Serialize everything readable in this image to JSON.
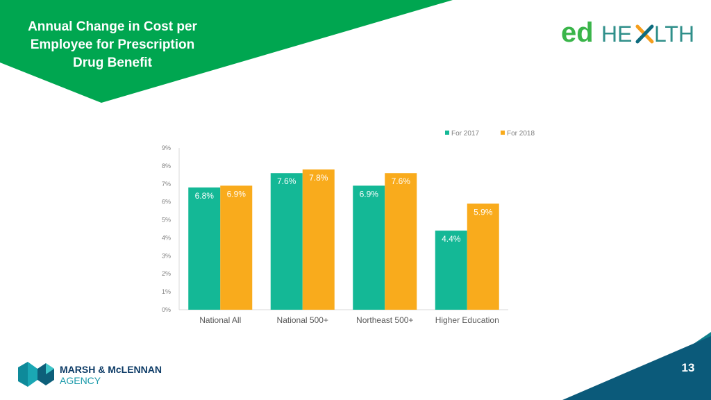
{
  "slide": {
    "title": "Annual Change in Cost per Employee for Prescription Drug Benefit",
    "page_number": "13"
  },
  "logos": {
    "edhealth": {
      "ed": "ed",
      "he": "HE",
      "lth": "LTH"
    },
    "agency": {
      "line1": "MARSH & McLENNAN",
      "line2": "AGENCY"
    }
  },
  "colors": {
    "banner_green": "#00a650",
    "series_2017": "#14b896",
    "series_2018": "#f9ab1c",
    "corner_blue": "#0b5a7a",
    "corner_teal": "#0f7f8c"
  },
  "chart_data": {
    "type": "bar",
    "title": "",
    "categories": [
      "National All",
      "National 500+",
      "Northeast 500+",
      "Higher Education"
    ],
    "series": [
      {
        "name": "For 2017",
        "values": [
          6.8,
          7.6,
          6.9,
          4.4
        ],
        "labels": [
          "6.8%",
          "7.6%",
          "6.9%",
          "4.4%"
        ]
      },
      {
        "name": "For 2018",
        "values": [
          6.9,
          7.8,
          7.6,
          5.9
        ],
        "labels": [
          "6.9%",
          "7.8%",
          "7.6%",
          "5.9%"
        ]
      }
    ],
    "yticks": [
      "0%",
      "1%",
      "2%",
      "3%",
      "4%",
      "5%",
      "6%",
      "7%",
      "8%",
      "9%"
    ],
    "ylim": [
      0,
      9
    ],
    "xlabel": "",
    "ylabel": "",
    "legend_position": "top-right"
  }
}
